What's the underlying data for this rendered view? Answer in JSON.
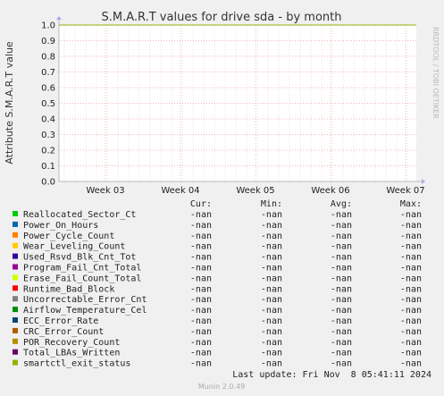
{
  "chart_data": {
    "type": "line",
    "title": "S.M.A.R.T values for drive sda - by month",
    "ylabel": "Attribute S.M.A.R.T value",
    "side_label": "RRDTOOL / TOBI OETIKER",
    "ylim": [
      0,
      1.0
    ],
    "yticks": [
      "0.0",
      "0.1",
      "0.2",
      "0.3",
      "0.4",
      "0.5",
      "0.6",
      "0.7",
      "0.8",
      "0.9",
      "1.0"
    ],
    "xticks": [
      "Week 03",
      "Week 04",
      "Week 05",
      "Week 06",
      "Week 07"
    ],
    "grid": true,
    "columns": [
      "Cur:",
      "Min:",
      "Avg:",
      "Max:"
    ],
    "series": [
      {
        "name": "Reallocated_Sector_Ct",
        "color": "#00cc00",
        "cur": "-nan",
        "min": "-nan",
        "avg": "-nan",
        "max": "-nan"
      },
      {
        "name": "Power_On_Hours",
        "color": "#0066b3",
        "cur": "-nan",
        "min": "-nan",
        "avg": "-nan",
        "max": "-nan"
      },
      {
        "name": "Power_Cycle_Count",
        "color": "#ff8000",
        "cur": "-nan",
        "min": "-nan",
        "avg": "-nan",
        "max": "-nan"
      },
      {
        "name": "Wear_Leveling_Count",
        "color": "#ffcc00",
        "cur": "-nan",
        "min": "-nan",
        "avg": "-nan",
        "max": "-nan"
      },
      {
        "name": "Used_Rsvd_Blk_Cnt_Tot",
        "color": "#330099",
        "cur": "-nan",
        "min": "-nan",
        "avg": "-nan",
        "max": "-nan"
      },
      {
        "name": "Program_Fail_Cnt_Total",
        "color": "#990099",
        "cur": "-nan",
        "min": "-nan",
        "avg": "-nan",
        "max": "-nan"
      },
      {
        "name": "Erase_Fail_Count_Total",
        "color": "#ccff00",
        "cur": "-nan",
        "min": "-nan",
        "avg": "-nan",
        "max": "-nan"
      },
      {
        "name": "Runtime_Bad_Block",
        "color": "#ff0000",
        "cur": "-nan",
        "min": "-nan",
        "avg": "-nan",
        "max": "-nan"
      },
      {
        "name": "Uncorrectable_Error_Cnt",
        "color": "#808080",
        "cur": "-nan",
        "min": "-nan",
        "avg": "-nan",
        "max": "-nan"
      },
      {
        "name": "Airflow_Temperature_Cel",
        "color": "#008f00",
        "cur": "-nan",
        "min": "-nan",
        "avg": "-nan",
        "max": "-nan"
      },
      {
        "name": "ECC_Error_Rate",
        "color": "#00487d",
        "cur": "-nan",
        "min": "-nan",
        "avg": "-nan",
        "max": "-nan"
      },
      {
        "name": "CRC_Error_Count",
        "color": "#b35a00",
        "cur": "-nan",
        "min": "-nan",
        "avg": "-nan",
        "max": "-nan"
      },
      {
        "name": "POR_Recovery_Count",
        "color": "#b38f00",
        "cur": "-nan",
        "min": "-nan",
        "avg": "-nan",
        "max": "-nan"
      },
      {
        "name": "Total_LBAs_Written",
        "color": "#6b006b",
        "cur": "-nan",
        "min": "-nan",
        "avg": "-nan",
        "max": "-nan"
      },
      {
        "name": "smartctl_exit_status",
        "color": "#8fb300",
        "cur": "-nan",
        "min": "-nan",
        "avg": "-nan",
        "max": "-nan"
      }
    ],
    "last_update": "Last update: Fri Nov  8 05:41:11 2024",
    "footer": "Munin 2.0.49",
    "visible_line": {
      "value": 1.0,
      "color": "#8fb300"
    },
    "colors": {
      "grid_major": "#f0a0a0",
      "grid_minor": "#e8c8c8",
      "plot_bg": "#ffffff",
      "axis": "#bbbbbb"
    }
  }
}
